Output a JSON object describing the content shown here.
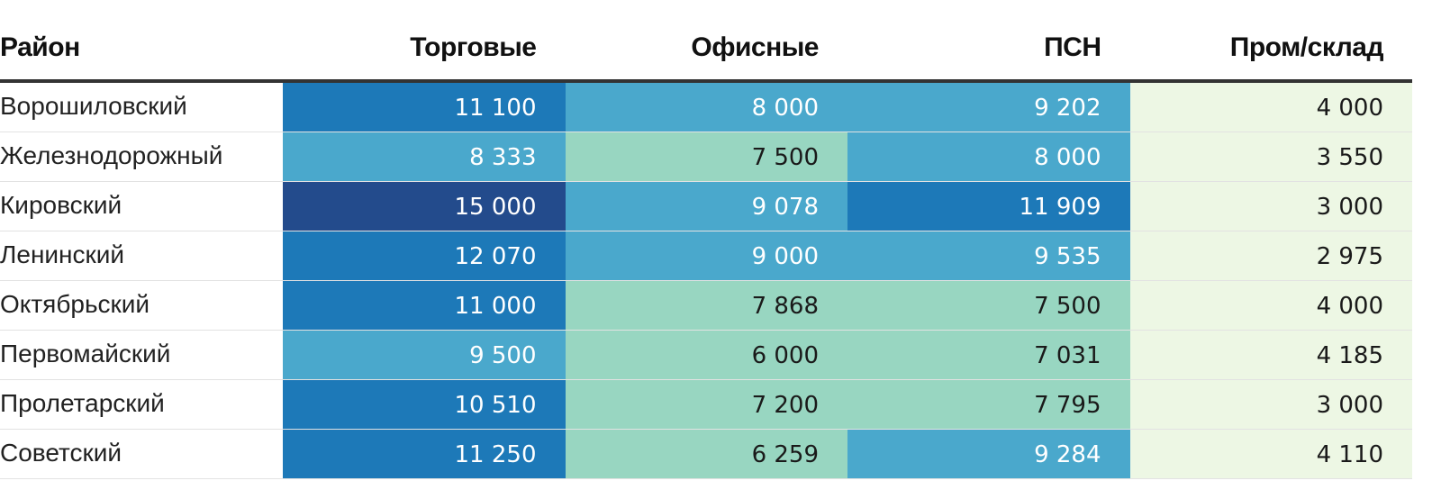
{
  "chart_data": {
    "type": "table",
    "columns": [
      "Район",
      "Торговые",
      "Офисные",
      "ПСН",
      "Пром/склад"
    ],
    "rows": [
      {
        "district": "Ворошиловский",
        "values": [
          "11 100",
          "8 000",
          "9 202",
          "4 000"
        ]
      },
      {
        "district": "Железнодорожный",
        "values": [
          "8 333",
          "7 500",
          "8 000",
          "3 550"
        ]
      },
      {
        "district": "Кировский",
        "values": [
          "15 000",
          "9 078",
          "11 909",
          "3 000"
        ]
      },
      {
        "district": "Ленинский",
        "values": [
          "12 070",
          "9 000",
          "9 535",
          "2 975"
        ]
      },
      {
        "district": "Октябрьский",
        "values": [
          "11 000",
          "7 868",
          "7 500",
          "4 000"
        ]
      },
      {
        "district": "Первомайский",
        "values": [
          "9 500",
          "6 000",
          "7 031",
          "4 185"
        ]
      },
      {
        "district": "Пролетарский",
        "values": [
          "10 510",
          "7 200",
          "7 795",
          "3 000"
        ]
      },
      {
        "district": "Советский",
        "values": [
          "11 250",
          "6 259",
          "9 284",
          "4 110"
        ]
      }
    ],
    "color_scale": {
      "thresholds": [
        5000,
        8000,
        10000,
        13000
      ],
      "colors": [
        "#edf7e4",
        "#98d6c1",
        "#4aa8cc",
        "#1d79b8",
        "#234b8c"
      ],
      "text_light": "#ffffff",
      "text_dark": "#1a1a1a"
    }
  }
}
